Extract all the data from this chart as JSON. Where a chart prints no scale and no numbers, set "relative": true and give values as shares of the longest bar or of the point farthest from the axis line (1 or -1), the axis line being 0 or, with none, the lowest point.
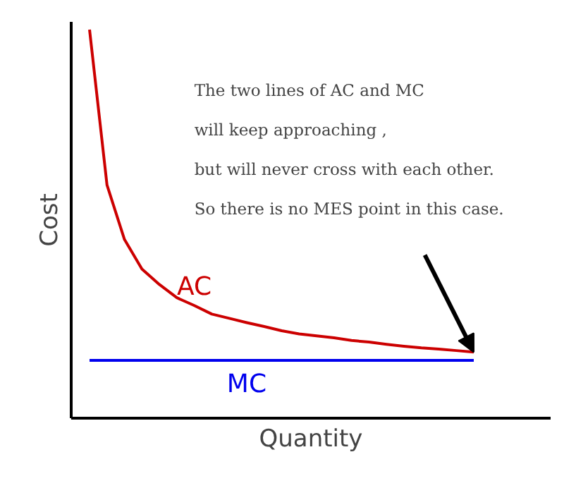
{
  "chart_data": {
    "type": "line",
    "relative": true,
    "xlabel": "Quantity",
    "ylabel": "Cost",
    "categories": [
      null,
      null,
      null,
      null,
      null,
      null,
      null,
      null,
      null,
      null,
      null,
      null,
      null,
      null,
      null,
      null,
      null,
      null,
      null,
      null,
      null,
      null,
      null
    ],
    "series": [
      {
        "name": "AC",
        "color": "#cc0000",
        "values": [
          1.0,
          0.6,
          0.46,
          0.384,
          0.344,
          0.31,
          0.29,
          0.268,
          0.257,
          0.246,
          0.236,
          0.225,
          0.217,
          0.212,
          0.207,
          0.2,
          0.196,
          0.19,
          0.185,
          0.181,
          0.178,
          0.174,
          0.17
        ]
      },
      {
        "name": "MC",
        "color": "#0000ee",
        "values": [
          0.149,
          0.149,
          0.149,
          0.149,
          0.149,
          0.149,
          0.149,
          0.149,
          0.149,
          0.149,
          0.149,
          0.149,
          0.149,
          0.149,
          0.149,
          0.149,
          0.149,
          0.149,
          0.149,
          0.149,
          0.149,
          0.149,
          0.149
        ]
      }
    ],
    "annotations": [
      "The two lines of AC and MC\nwill keep approaching ,\nbut will never cross with each other.\nSo there is no MES point in this case."
    ]
  }
}
